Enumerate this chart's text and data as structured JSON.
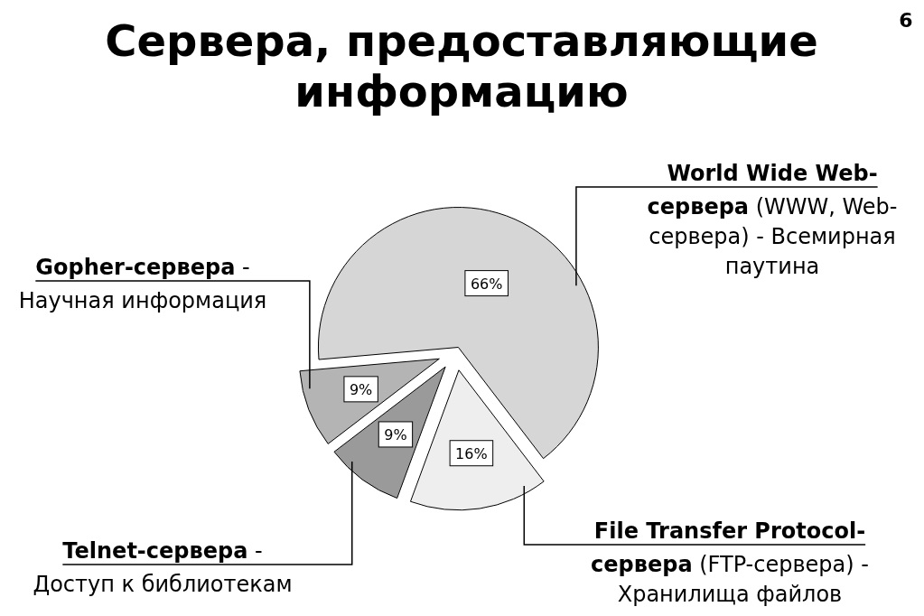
{
  "chart_data": {
    "type": "pie",
    "title": "Сервера, предоставляющие информацию",
    "categories": [
      "World Wide Web-сервера (WWW, Web-сервера) - Всемирная паутина",
      "File Transfer Protocol-сервера (FTP-сервера) - Хранилища файлов",
      "Telnet-сервера - Доступ к библиотекам",
      "Gopher-сервера - Научная информация"
    ],
    "values": [
      66,
      16,
      9,
      9
    ],
    "colors": [
      "#d6d6d6",
      "#eeeeee",
      "#9a9a9a",
      "#b4b4b4"
    ],
    "value_labels": [
      "66%",
      "16%",
      "9%",
      "9%"
    ],
    "annotations": [
      "6"
    ]
  }
}
